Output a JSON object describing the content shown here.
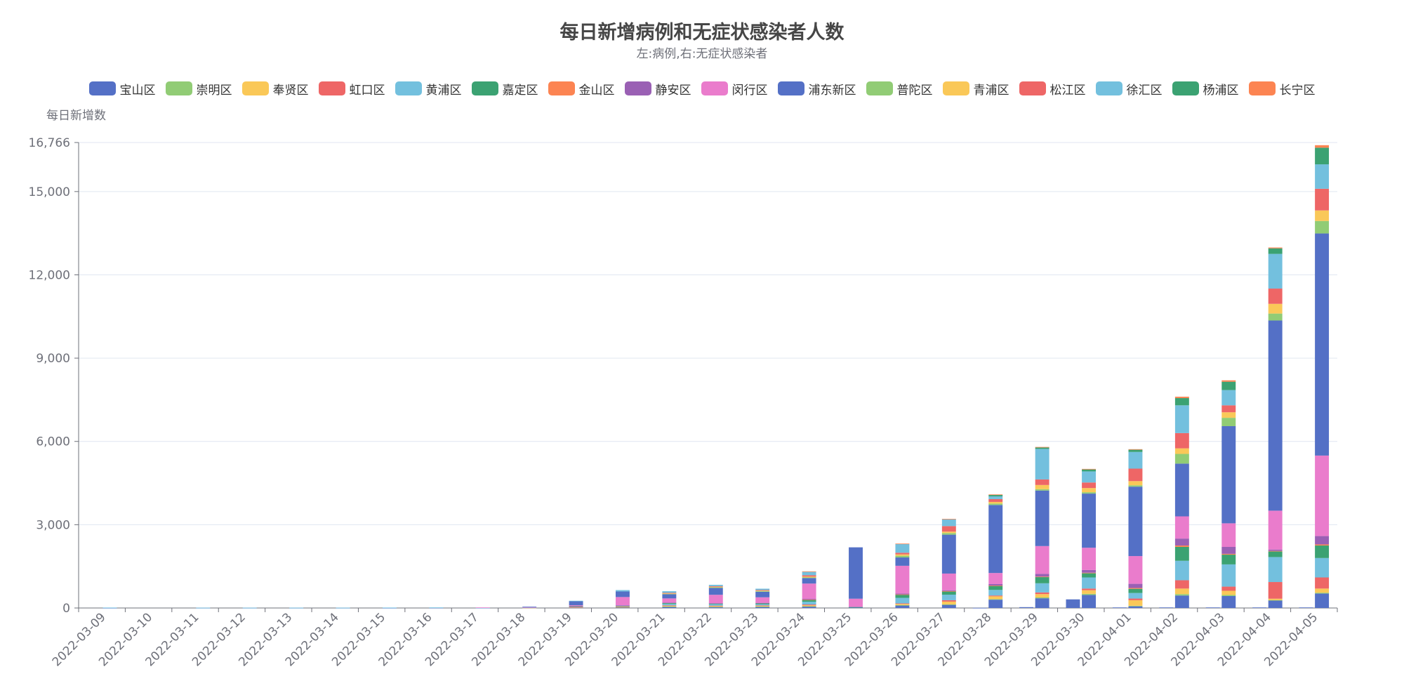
{
  "chart_data": {
    "type": "bar",
    "stacked": true,
    "title": "每日新增病例和无症状感染者人数",
    "subtitle": "左:病例,右:无症状感染者",
    "ylabel": "每日新增数",
    "ylim": [
      0,
      16766
    ],
    "yticks": [
      0,
      3000,
      6000,
      9000,
      12000,
      15000,
      16766
    ],
    "ytick_labels": [
      "0",
      "3,000",
      "6,000",
      "9,000",
      "12,000",
      "15,000",
      "16,766"
    ],
    "grid": true,
    "legend_position": "top",
    "categories": [
      "2022-03-09",
      "2022-03-10",
      "2022-03-11",
      "2022-03-12",
      "2022-03-13",
      "2022-03-14",
      "2022-03-15",
      "2022-03-16",
      "2022-03-17",
      "2022-03-18",
      "2022-03-19",
      "2022-03-20",
      "2022-03-21",
      "2022-03-22",
      "2022-03-23",
      "2022-03-24",
      "2022-03-25",
      "2022-03-26",
      "2022-03-27",
      "2022-03-28",
      "2022-03-29",
      "2022-03-30",
      "2022-04-01",
      "2022-04-02",
      "2022-04-03",
      "2022-04-04",
      "2022-04-05"
    ],
    "series": [
      {
        "name": "宝山区",
        "color": "#5470c6",
        "cases": [
          0,
          0,
          0,
          0,
          0,
          0,
          0,
          0,
          0,
          0,
          0,
          0,
          0,
          0,
          0,
          0,
          0,
          0,
          0,
          5,
          30,
          310,
          20,
          20,
          20,
          20,
          20
        ],
        "asympt": [
          5,
          0,
          5,
          5,
          5,
          5,
          5,
          10,
          5,
          5,
          20,
          30,
          50,
          40,
          50,
          60,
          30,
          100,
          120,
          300,
          350,
          470,
          60,
          450,
          430,
          280,
          520
        ]
      },
      {
        "name": "崇明区",
        "color": "#91cc75",
        "cases": [
          0,
          0,
          0,
          0,
          0,
          0,
          0,
          0,
          0,
          0,
          0,
          0,
          0,
          0,
          0,
          0,
          0,
          0,
          0,
          0,
          0,
          0,
          0,
          0,
          0,
          0,
          0
        ],
        "asympt": [
          0,
          0,
          0,
          0,
          0,
          0,
          0,
          0,
          0,
          0,
          0,
          5,
          5,
          5,
          5,
          5,
          0,
          5,
          10,
          20,
          30,
          40,
          20,
          50,
          40,
          5,
          30
        ]
      },
      {
        "name": "奉贤区",
        "color": "#fac858",
        "cases": [
          0,
          0,
          0,
          0,
          0,
          0,
          0,
          0,
          0,
          0,
          0,
          0,
          0,
          0,
          0,
          0,
          0,
          0,
          0,
          0,
          0,
          0,
          0,
          0,
          0,
          0,
          0
        ],
        "asympt": [
          0,
          0,
          0,
          0,
          0,
          0,
          0,
          0,
          0,
          5,
          10,
          10,
          20,
          20,
          20,
          30,
          0,
          40,
          100,
          100,
          120,
          130,
          200,
          200,
          150,
          50,
          150
        ]
      },
      {
        "name": "虹口区",
        "color": "#ee6666",
        "cases": [
          0,
          0,
          0,
          0,
          0,
          0,
          0,
          0,
          0,
          0,
          0,
          0,
          0,
          0,
          0,
          0,
          0,
          0,
          0,
          0,
          0,
          0,
          0,
          0,
          0,
          0,
          0
        ],
        "asympt": [
          0,
          0,
          0,
          0,
          0,
          0,
          0,
          0,
          0,
          0,
          10,
          10,
          20,
          20,
          20,
          30,
          0,
          20,
          50,
          30,
          60,
          60,
          60,
          300,
          150,
          600,
          400
        ]
      },
      {
        "name": "黄浦区",
        "color": "#73c0de",
        "cases": [
          0,
          0,
          0,
          0,
          0,
          0,
          0,
          0,
          0,
          0,
          0,
          0,
          0,
          0,
          0,
          0,
          0,
          0,
          0,
          0,
          0,
          0,
          0,
          0,
          0,
          0,
          0
        ],
        "asympt": [
          10,
          0,
          5,
          5,
          5,
          5,
          10,
          10,
          5,
          10,
          20,
          20,
          50,
          50,
          40,
          100,
          0,
          200,
          200,
          200,
          330,
          400,
          200,
          700,
          800,
          900,
          700
        ]
      },
      {
        "name": "嘉定区",
        "color": "#3ba272",
        "cases": [
          0,
          0,
          0,
          0,
          0,
          0,
          0,
          0,
          0,
          0,
          0,
          0,
          0,
          0,
          0,
          0,
          0,
          0,
          0,
          0,
          0,
          0,
          0,
          0,
          0,
          0,
          0
        ],
        "asympt": [
          0,
          0,
          0,
          0,
          0,
          0,
          0,
          0,
          0,
          0,
          10,
          10,
          30,
          20,
          30,
          70,
          5,
          120,
          120,
          150,
          230,
          150,
          150,
          500,
          350,
          200,
          450
        ]
      },
      {
        "name": "金山区",
        "color": "#fc8452",
        "cases": [
          0,
          0,
          0,
          0,
          0,
          0,
          0,
          0,
          0,
          0,
          0,
          0,
          0,
          0,
          0,
          0,
          0,
          0,
          0,
          0,
          0,
          0,
          0,
          0,
          0,
          0,
          0
        ],
        "asympt": [
          0,
          0,
          0,
          0,
          0,
          0,
          0,
          0,
          0,
          0,
          0,
          0,
          0,
          0,
          0,
          5,
          0,
          5,
          10,
          10,
          10,
          20,
          30,
          50,
          30,
          20,
          40
        ]
      },
      {
        "name": "静安区",
        "color": "#9a60b4",
        "cases": [
          0,
          0,
          0,
          0,
          0,
          0,
          0,
          0,
          0,
          0,
          0,
          0,
          0,
          0,
          0,
          0,
          0,
          0,
          0,
          0,
          0,
          0,
          0,
          0,
          0,
          0,
          0
        ],
        "asympt": [
          0,
          0,
          0,
          0,
          0,
          0,
          0,
          0,
          0,
          0,
          10,
          10,
          20,
          20,
          20,
          30,
          0,
          30,
          30,
          50,
          100,
          100,
          150,
          250,
          250,
          50,
          300
        ]
      },
      {
        "name": "闵行区",
        "color": "#ea7ccc",
        "cases": [
          0,
          0,
          0,
          0,
          0,
          0,
          0,
          0,
          0,
          0,
          0,
          0,
          0,
          0,
          0,
          0,
          0,
          0,
          0,
          0,
          0,
          0,
          0,
          0,
          0,
          0,
          0
        ],
        "asympt": [
          0,
          0,
          0,
          0,
          0,
          0,
          0,
          0,
          10,
          10,
          20,
          300,
          150,
          300,
          200,
          550,
          300,
          1000,
          600,
          400,
          1000,
          800,
          1000,
          800,
          850,
          1400,
          2900
        ]
      },
      {
        "name": "浦东新区",
        "color": "#5470c6",
        "cases": [
          0,
          0,
          0,
          0,
          0,
          0,
          0,
          0,
          0,
          0,
          0,
          0,
          0,
          0,
          0,
          0,
          0,
          0,
          0,
          0,
          0,
          0,
          0,
          0,
          0,
          0,
          0
        ],
        "asympt": [
          0,
          0,
          0,
          0,
          0,
          0,
          0,
          0,
          0,
          20,
          150,
          200,
          150,
          250,
          200,
          200,
          1850,
          300,
          1400,
          2450,
          2000,
          1950,
          2500,
          1900,
          3500,
          6850,
          8000
        ]
      },
      {
        "name": "普陀区",
        "color": "#91cc75",
        "cases": [
          0,
          0,
          0,
          0,
          0,
          0,
          0,
          0,
          0,
          0,
          0,
          0,
          0,
          0,
          0,
          0,
          0,
          0,
          0,
          0,
          0,
          0,
          0,
          0,
          0,
          0,
          0
        ],
        "asympt": [
          0,
          0,
          0,
          0,
          0,
          0,
          0,
          0,
          0,
          0,
          0,
          0,
          20,
          20,
          20,
          20,
          0,
          60,
          60,
          50,
          50,
          50,
          50,
          350,
          300,
          250,
          450
        ]
      },
      {
        "name": "青浦区",
        "color": "#fac858",
        "cases": [
          0,
          0,
          0,
          0,
          0,
          0,
          0,
          0,
          0,
          0,
          0,
          0,
          0,
          0,
          0,
          0,
          0,
          0,
          0,
          0,
          0,
          0,
          0,
          0,
          0,
          0,
          0
        ],
        "asympt": [
          0,
          0,
          0,
          0,
          0,
          0,
          0,
          0,
          0,
          0,
          0,
          0,
          10,
          20,
          20,
          30,
          0,
          50,
          50,
          60,
          150,
          150,
          150,
          200,
          200,
          350,
          380
        ]
      },
      {
        "name": "松江区",
        "color": "#ee6666",
        "cases": [
          0,
          0,
          0,
          0,
          0,
          0,
          0,
          0,
          0,
          0,
          0,
          0,
          0,
          0,
          0,
          0,
          0,
          0,
          0,
          0,
          0,
          0,
          0,
          0,
          0,
          0,
          0
        ],
        "asympt": [
          0,
          0,
          0,
          0,
          0,
          0,
          0,
          0,
          0,
          0,
          0,
          0,
          20,
          20,
          20,
          50,
          0,
          60,
          200,
          100,
          200,
          200,
          450,
          550,
          250,
          550,
          780
        ]
      },
      {
        "name": "徐汇区",
        "color": "#73c0de",
        "cases": [
          0,
          0,
          0,
          0,
          0,
          0,
          0,
          0,
          0,
          0,
          0,
          0,
          0,
          0,
          0,
          0,
          0,
          0,
          0,
          0,
          0,
          0,
          0,
          0,
          0,
          0,
          0
        ],
        "asympt": [
          0,
          0,
          0,
          0,
          0,
          0,
          0,
          0,
          0,
          0,
          10,
          50,
          60,
          50,
          50,
          120,
          0,
          320,
          250,
          100,
          1100,
          400,
          600,
          1000,
          550,
          1250,
          880
        ]
      },
      {
        "name": "杨浦区",
        "color": "#3ba272",
        "cases": [
          0,
          0,
          0,
          0,
          0,
          0,
          0,
          0,
          0,
          0,
          0,
          0,
          0,
          0,
          0,
          0,
          0,
          0,
          0,
          0,
          0,
          0,
          0,
          0,
          0,
          0,
          0
        ],
        "asympt": [
          0,
          0,
          0,
          0,
          0,
          0,
          0,
          0,
          0,
          0,
          0,
          0,
          0,
          0,
          0,
          0,
          0,
          0,
          0,
          50,
          50,
          70,
          80,
          260,
          300,
          200,
          600
        ]
      },
      {
        "name": "长宁区",
        "color": "#fc8452",
        "cases": [
          0,
          0,
          0,
          0,
          0,
          0,
          0,
          0,
          0,
          0,
          0,
          0,
          0,
          0,
          0,
          0,
          0,
          0,
          0,
          0,
          0,
          0,
          0,
          0,
          0,
          0,
          0
        ],
        "asympt": [
          0,
          0,
          0,
          0,
          0,
          0,
          0,
          0,
          0,
          0,
          0,
          0,
          0,
          0,
          0,
          20,
          0,
          10,
          10,
          20,
          20,
          20,
          20,
          50,
          50,
          30,
          90
        ]
      }
    ]
  }
}
